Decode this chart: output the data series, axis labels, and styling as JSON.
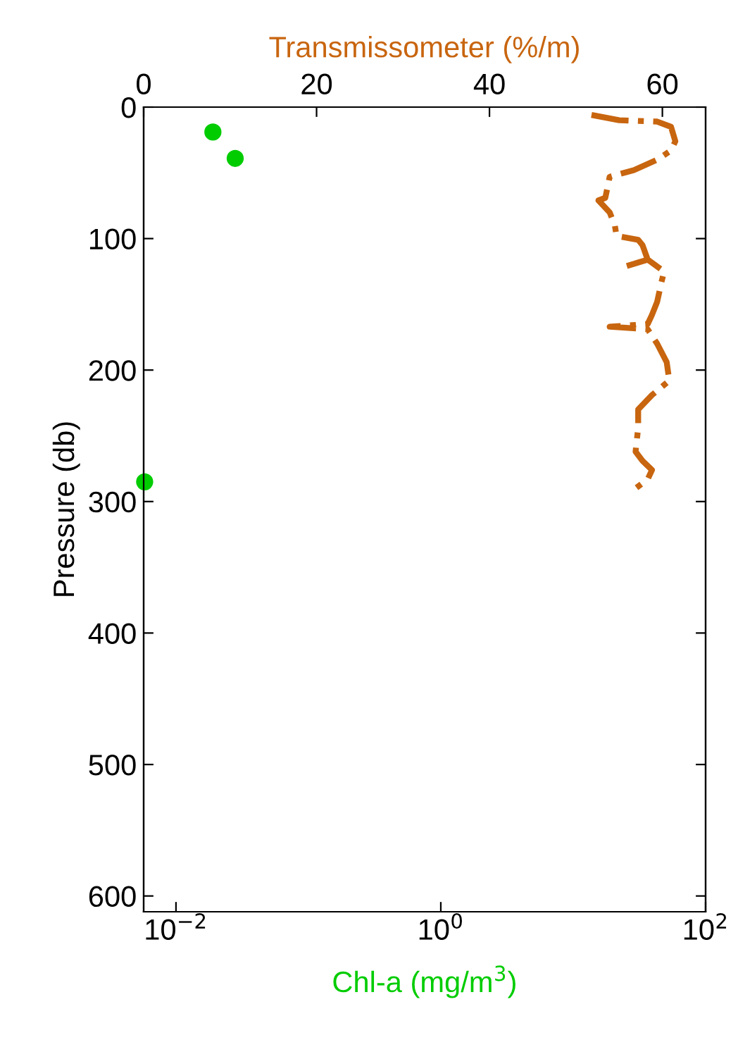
{
  "chart_data": {
    "type": "scatter",
    "xlabel": "Chl-a (mg/m$^{3}$)",
    "x2label": "Transmissometer (%/m)",
    "ylabel": "Pressure (db)",
    "log": "x",
    "xlim": [
      0.0057,
      100
    ],
    "xticks": [
      {
        "value": 0.01,
        "label": "10$^{−2}$"
      },
      {
        "value": 1,
        "label": "10$^{0}$"
      },
      {
        "value": 100,
        "label": "10$^{2}$"
      }
    ],
    "x2lim": [
      0,
      65
    ],
    "x2ticks": [
      0,
      20,
      40,
      60
    ],
    "ylim": [
      612,
      0
    ],
    "yticks": [
      0,
      100,
      200,
      300,
      400,
      500,
      600
    ],
    "grid": false,
    "series": [
      {
        "color": "#00cc00",
        "marker": "circle",
        "x": [
          0.019,
          0.028,
          0.0058
        ],
        "values": [
          19,
          39,
          285
        ]
      },
      {
        "type": "line",
        "axis": "x2",
        "color": "#c8650f",
        "line_style": "dashdot",
        "marker": "none",
        "x": [
          51.8,
          55.0,
          59.4,
          61.0,
          61.5,
          61.0,
          59.4,
          56.7,
          53.9,
          53.4,
          52.6,
          53.9,
          54.5,
          54.7,
          57.2,
          57.7,
          58.3,
          55.8,
          58.3,
          60.2,
          59.9,
          59.4,
          58.8,
          58.3,
          53.9,
          58.3,
          59.4,
          60.5,
          60.8,
          58.8,
          57.2,
          57.2,
          56.9,
          57.7,
          58.8,
          58.3,
          56.9
        ],
        "values": [
          6,
          10,
          11,
          15,
          26,
          33,
          40,
          48,
          53,
          69,
          71,
          80,
          90,
          98,
          101,
          105,
          116,
          121,
          116,
          125,
          133,
          148,
          158,
          165,
          167,
          169,
          180,
          194,
          208,
          219,
          230,
          244,
          262,
          269,
          276,
          283,
          290
        ]
      }
    ]
  }
}
